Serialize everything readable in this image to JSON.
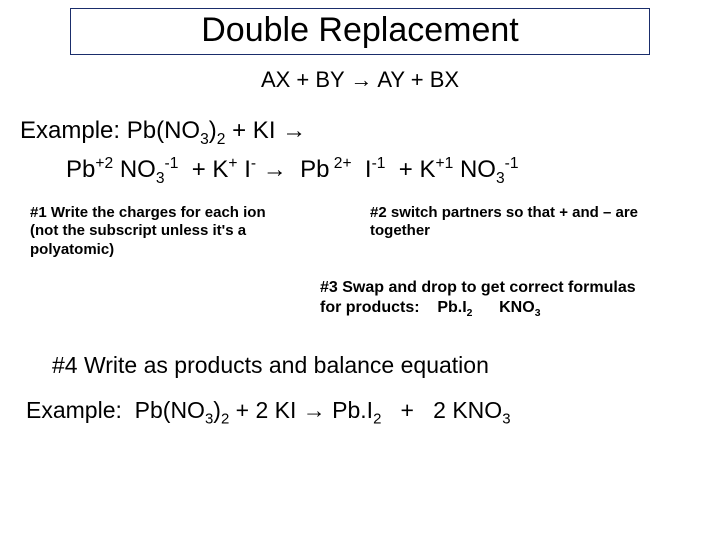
{
  "title": "Double Replacement",
  "general_equation": "AX + BY → AY + BX",
  "example_label": "Example:",
  "reactant1_a": "Pb(NO",
  "reactant1_b": ")",
  "plus1": " + KI ",
  "arrow": "→",
  "ion1_el": "Pb",
  "ion1_ch": "+2",
  "sp1": " ",
  "ion2_el": "NO",
  "ion2_sub": "3",
  "ion2_ch": "-1",
  "sp2": "  + ",
  "ion3_el": "K",
  "ion3_ch": "+",
  "sp3": " ",
  "ion4_el": "I",
  "ion4_ch": "-",
  "sp4": " ",
  "sp5": "  ",
  "ion5_el": "Pb",
  "ion5_ch": " 2+",
  "sp6": "  ",
  "ion6_el": "I",
  "ion6_ch": "-1",
  "sp7": "  + ",
  "ion7_el": "K",
  "ion7_ch": "+1",
  "sp8": " ",
  "ion8_el": "NO",
  "ion8_sub": "3",
  "ion8_ch": "-1",
  "note1_a": "#1 Write the charges for each ion",
  "note1_b": "(not the subscript unless it's a",
  "note1_c": "polyatomic)",
  "note2_a": "#2 switch partners so that + and – are",
  "note2_b": "together",
  "note3_a": "#3 Swap and drop to get correct formulas",
  "note3_b": "for products:    Pb.I",
  "note3_b2": "2",
  "note3_c": "      KNO",
  "note3_c2": "3",
  "step4": "#4 Write as products and balance equation",
  "ex2_a": "Example:  Pb(NO",
  "ex2_b": ")",
  "ex2_b2": " + 2 KI ",
  "ex2_c": " Pb.I",
  "ex2_d": "   +   2 KNO",
  "three": "3",
  "two": "2"
}
